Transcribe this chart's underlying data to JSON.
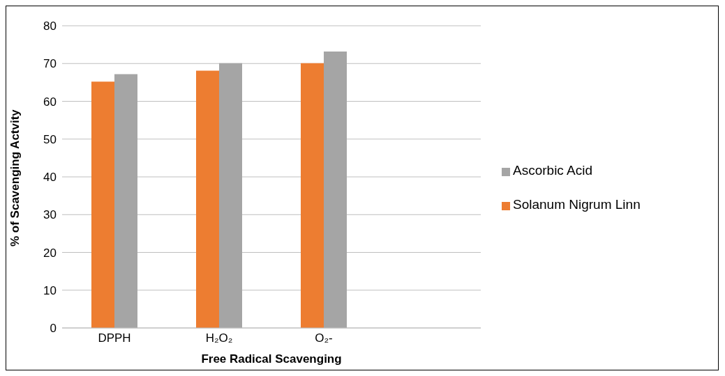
{
  "chart_data": {
    "type": "bar",
    "xlabel": "Free Radical Scavenging",
    "ylabel": "% of Scavenging Actvity",
    "categories": [
      "DPPH",
      "H₂O₂",
      "O₂-",
      null
    ],
    "series": [
      {
        "name": "Solanum Nigrum Linn",
        "color": "#ed7d31",
        "values": [
          65.2,
          68.1,
          70.1,
          null
        ]
      },
      {
        "name": "Ascorbic Acid",
        "color": "#a5a5a5",
        "values": [
          67.2,
          70.1,
          73.2,
          null
        ]
      }
    ],
    "ylim": [
      0,
      80
    ],
    "yticks": [
      0,
      10,
      20,
      30,
      40,
      50,
      60,
      70,
      80
    ],
    "grid": "y",
    "legend": "right"
  }
}
